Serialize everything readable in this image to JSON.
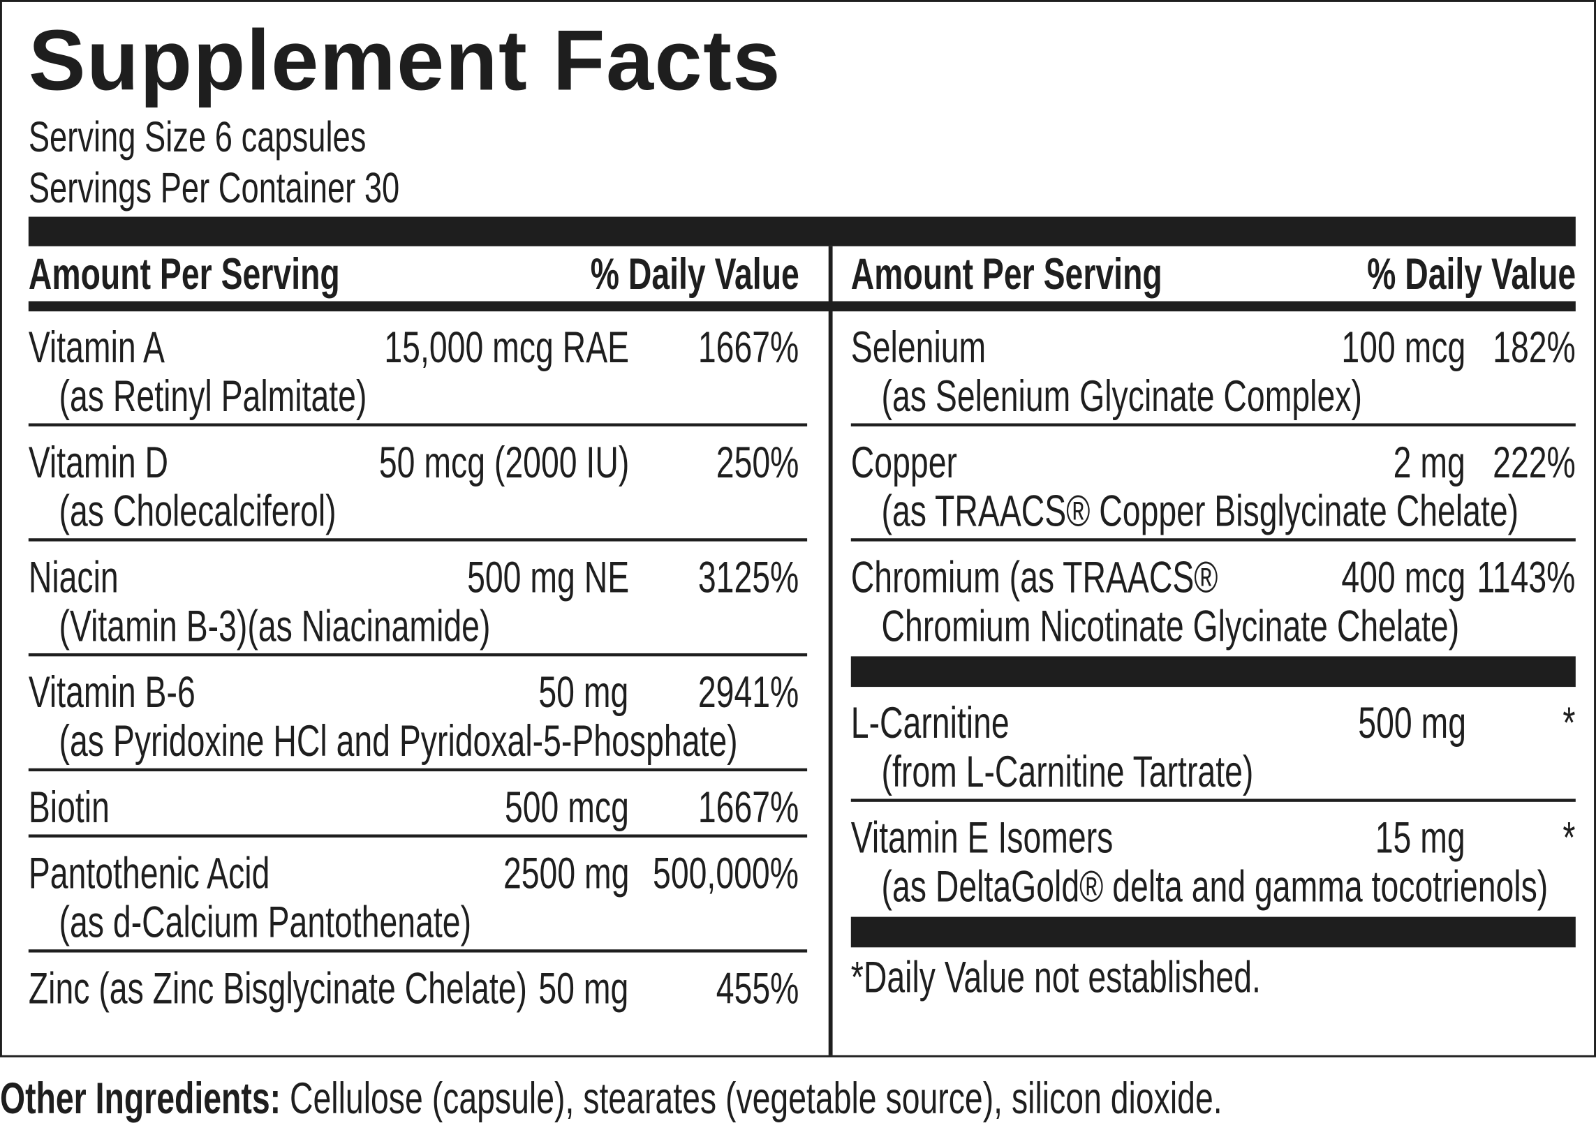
{
  "header": {
    "title": "Supplement Facts",
    "serving_size": "Serving Size 6 capsules",
    "servings_per_container": "Servings Per Container 30"
  },
  "columns": [
    {
      "amount_header": "Amount Per Serving",
      "dv_header": "% Daily Value",
      "groups": [
        [
          {
            "name": "Vitamin A",
            "detail": "(as Retinyl Palmitate)",
            "amount": "15,000 mcg RAE",
            "dv": "1667%"
          },
          {
            "name": "Vitamin D",
            "detail": "(as Cholecalciferol)",
            "amount": "50 mcg (2000 IU)",
            "dv": "250%"
          },
          {
            "name": "Niacin",
            "detail": "(Vitamin B-3)(as Niacinamide)",
            "amount": "500 mg NE",
            "dv": "3125%"
          },
          {
            "name": "Vitamin B-6",
            "detail": "(as Pyridoxine HCl and Pyridoxal-5-Phosphate)",
            "amount": "50 mg",
            "dv": "2941%"
          },
          {
            "name": "Biotin",
            "amount": "500 mcg",
            "dv": "1667%"
          },
          {
            "name": "Pantothenic Acid",
            "detail": "(as d-Calcium Pantothenate)",
            "amount": "2500 mg",
            "dv": "500,000%"
          },
          {
            "name": "Zinc (as Zinc Bisglycinate Chelate)",
            "amount": "50 mg",
            "dv": "455%"
          }
        ]
      ]
    },
    {
      "amount_header": "Amount Per Serving",
      "dv_header": "% Daily Value",
      "groups": [
        [
          {
            "name": "Selenium",
            "detail": "(as Selenium Glycinate Complex)",
            "amount": "100 mcg",
            "dv": "182%"
          },
          {
            "name": "Copper",
            "detail": "(as TRAACS® Copper Bisglycinate Chelate)",
            "amount": "2 mg",
            "dv": "222%"
          },
          {
            "name": "Chromium (as TRAACS®",
            "detail": "Chromium Nicotinate Glycinate Chelate)",
            "amount": "400 mcg",
            "dv": "1143%"
          }
        ],
        [
          {
            "name": "L-Carnitine",
            "detail": "(from L-Carnitine Tartrate)",
            "amount": "500 mg",
            "dv": "*"
          },
          {
            "name": "Vitamin E Isomers",
            "detail": "(as DeltaGold® delta and gamma tocotrienols)",
            "amount": "15 mg",
            "dv": "*"
          }
        ]
      ]
    }
  ],
  "footnote": "*Daily Value not established.",
  "other_ingredients": {
    "label": "Other Ingredients:",
    "text": "Cellulose (capsule), stearates (vegetable source), silicon dioxide."
  }
}
